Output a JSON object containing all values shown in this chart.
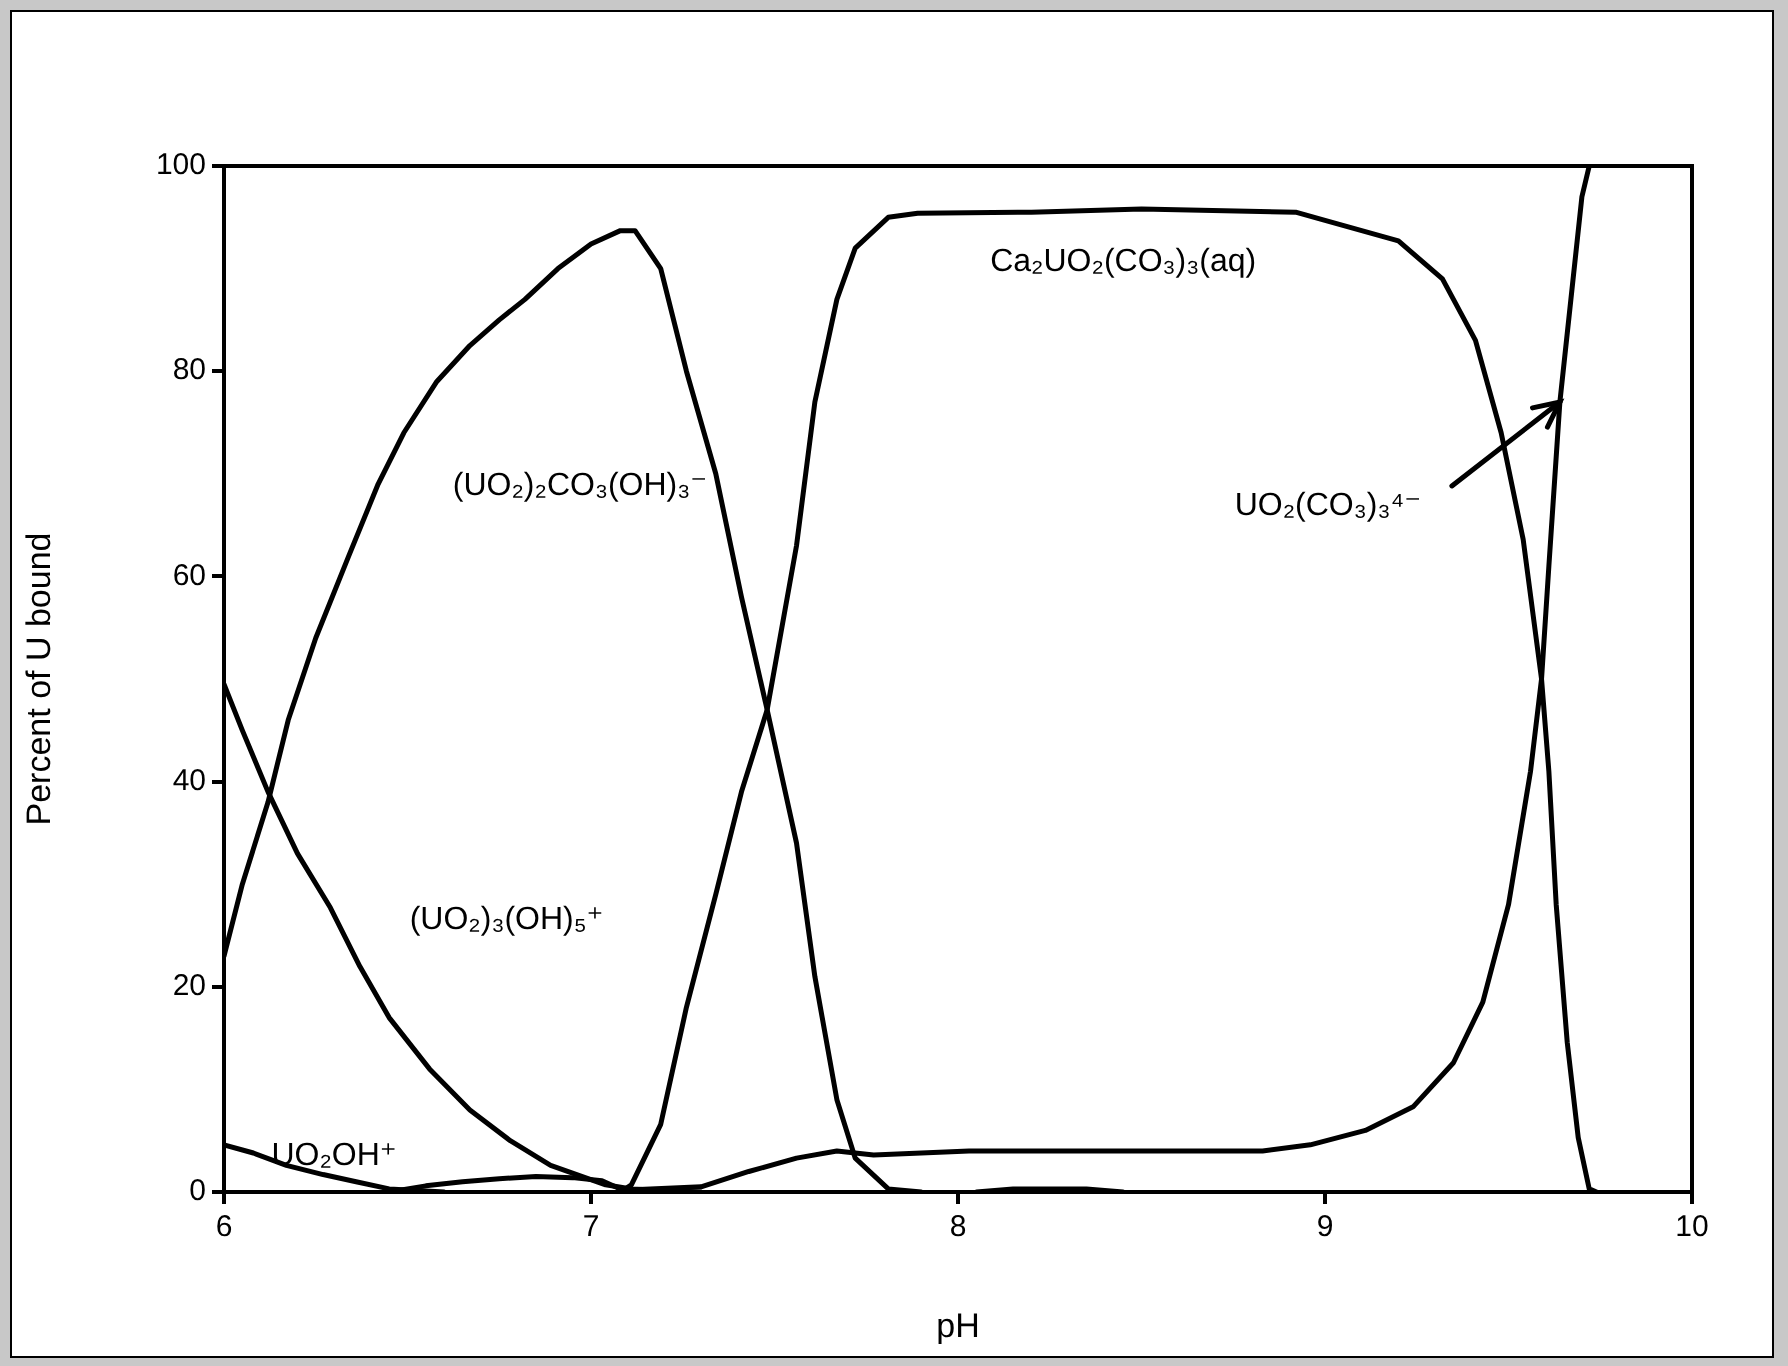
{
  "chart_data": {
    "type": "line",
    "xlabel": "pH",
    "ylabel": "Percent of U bound",
    "xlim": [
      6,
      10
    ],
    "ylim": [
      0,
      100
    ],
    "xticks": [
      6,
      7,
      8,
      9,
      10
    ],
    "yticks": [
      0,
      20,
      40,
      60,
      80,
      100
    ],
    "grid": false,
    "legend": false,
    "marker": "none",
    "line_style": "solid",
    "series": [
      {
        "name": "(UO₂)₂CO₃(OH)₃⁻",
        "color": "#000000",
        "x": [
          6,
          6.05,
          6.12,
          6.175,
          6.25,
          6.34,
          6.42,
          6.49,
          6.58,
          6.67,
          6.75,
          6.82,
          6.91,
          7.0,
          7.08,
          7.12,
          7.19,
          7.26,
          7.34,
          7.41,
          7.48,
          7.56,
          7.61,
          7.67,
          7.72,
          7.81,
          7.9
        ],
        "values": [
          23,
          30,
          38,
          46,
          54,
          62,
          69,
          74,
          79,
          82.5,
          85,
          87,
          90,
          92.4,
          93.7,
          93.7,
          90,
          80,
          70,
          58,
          47,
          34,
          21,
          9,
          3.3,
          0.3,
          0
        ]
      },
      {
        "name": "(UO₂)₃(OH)₅⁺",
        "color": "#000000",
        "x": [
          6,
          6.05,
          6.12,
          6.2,
          6.29,
          6.37,
          6.45,
          6.56,
          6.67,
          6.78,
          6.89,
          7.04,
          7.11,
          7.3
        ],
        "values": [
          49.5,
          45,
          39,
          33,
          27.7,
          22,
          17,
          12,
          8,
          5,
          2.6,
          0.7,
          0.3,
          0
        ]
      },
      {
        "name": "UO₂OH⁺",
        "color": "#000000",
        "x": [
          6,
          6.08,
          6.17,
          6.27,
          6.36,
          6.45,
          6.6
        ],
        "values": [
          4.6,
          3.8,
          2.6,
          1.7,
          1,
          0.3,
          0
        ]
      },
      {
        "color": "#000000",
        "x": [
          6.45,
          6.55,
          6.65,
          6.75,
          6.85,
          6.95,
          7.03,
          7.08,
          7.15
        ],
        "values": [
          0,
          0.6,
          1,
          1.3,
          1.5,
          1.4,
          1.1,
          0.3,
          0
        ]
      },
      {
        "name": "Ca₂UO₂(CO₃)₃(aq)",
        "color": "#000000",
        "x": [
          7.08,
          7.11,
          7.19,
          7.26,
          7.34,
          7.41,
          7.48,
          7.56,
          7.61,
          7.67,
          7.72,
          7.81,
          7.89,
          8.2,
          8.5,
          8.92,
          9.0,
          9.2,
          9.32,
          9.41,
          9.48,
          9.54,
          9.59,
          9.61,
          9.63,
          9.66,
          9.69,
          9.72,
          9.74
        ],
        "values": [
          0,
          0.7,
          6.6,
          18,
          29,
          39,
          47,
          63,
          77,
          87,
          92,
          95,
          95.4,
          95.5,
          95.8,
          95.5,
          94.7,
          92.7,
          89,
          83,
          74,
          63.6,
          50,
          41,
          28,
          14.6,
          5.3,
          0.3,
          0
        ]
      },
      {
        "color": "#000000",
        "x": [
          7.1,
          7.3,
          7.43,
          7.56,
          7.67,
          7.77,
          8.03,
          8.83,
          8.96,
          9.11,
          9.24,
          9.35,
          9.43,
          9.5,
          9.56,
          9.59,
          9.61,
          9.64,
          9.67,
          9.7,
          9.72
        ],
        "values": [
          0.2,
          0.5,
          2,
          3.3,
          4,
          3.6,
          4,
          4,
          4.6,
          6,
          8.3,
          12.6,
          18.5,
          28,
          41,
          50,
          61,
          77,
          87,
          97,
          100
        ]
      },
      {
        "color": "#000000",
        "x": [
          8.05,
          8.15,
          8.35,
          8.45
        ],
        "values": [
          0,
          0.3,
          0.3,
          0
        ]
      }
    ],
    "annotations": [
      {
        "text": "UO₂(CO₃)₃⁴⁻",
        "x": 9.64,
        "y": 77
      }
    ]
  }
}
